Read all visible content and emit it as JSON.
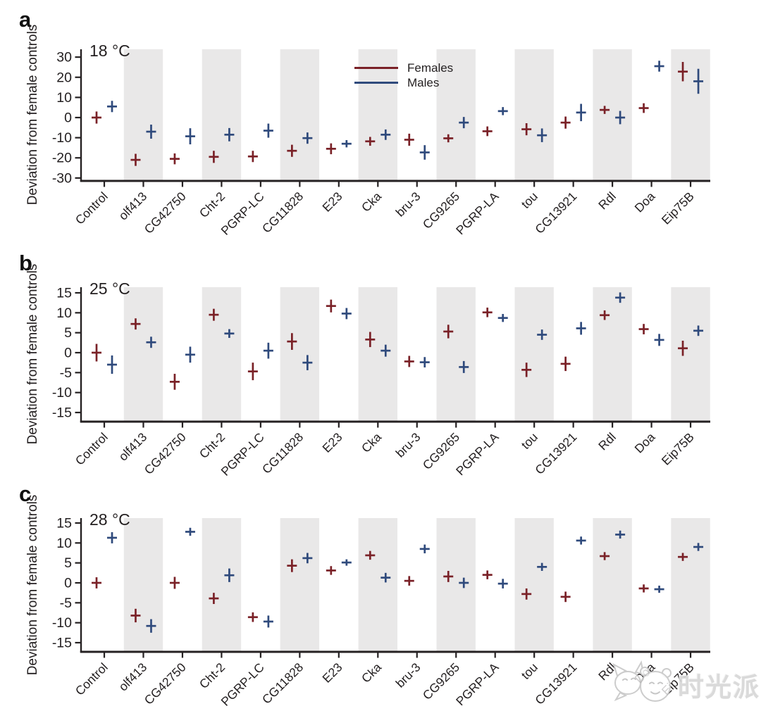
{
  "figure": {
    "panels": [
      {
        "letter": "a",
        "temperature": "18 °C",
        "ylabel": "Deviation from female controls"
      },
      {
        "letter": "b",
        "temperature": "25 °C",
        "ylabel": "Deviation from female controls"
      },
      {
        "letter": "c",
        "temperature": "28 °C",
        "ylabel": "Deviation from female controls"
      }
    ],
    "legend": {
      "females": "Females",
      "males": "Males"
    },
    "watermark": {
      "text": "时光派"
    },
    "colors": {
      "females": "#7a2127",
      "males": "#2f4a7c",
      "shaded_band": "#e9e8e8",
      "axis": "#252122"
    }
  },
  "chart_data": [
    {
      "type": "scatter",
      "panel": "a",
      "title": "18 °C",
      "xlabel": "",
      "ylabel": "Deviation from female controls",
      "ylim": [
        -32,
        32
      ],
      "yticks": [
        30,
        20,
        10,
        0,
        -10,
        -20,
        -30
      ],
      "grid": false,
      "legend_position": "top-center-inside",
      "legend_entries": [
        "Females",
        "Males"
      ],
      "shaded_band_indices": [
        1,
        3,
        5,
        7,
        9,
        11,
        13,
        15
      ],
      "categories": [
        "Control",
        "olf413",
        "CG42750",
        "Cht-2",
        "PGRP-LC",
        "CG11828",
        "E23",
        "Cka",
        "bru-3",
        "CG9265",
        "PGRP-LA",
        "tou",
        "CG13921",
        "Rdl",
        "Doa",
        "Eip75B"
      ],
      "series": [
        {
          "name": "Females",
          "color": "#7a2127",
          "values": [
            0,
            -21,
            -20.5,
            -19.5,
            -19.3,
            -16.5,
            -15.5,
            -11.8,
            -11,
            -10.3,
            -6.8,
            -5.8,
            -2.5,
            3.8,
            4.7,
            22.8
          ],
          "errors": [
            3,
            3,
            2.7,
            3,
            2.8,
            3,
            2.7,
            2.2,
            3,
            2,
            2.4,
            3,
            3,
            2,
            2.4,
            4.8
          ]
        },
        {
          "name": "Males",
          "color": "#2f4a7c",
          "values": [
            5.5,
            -7,
            -9.3,
            -8.5,
            -6.5,
            -10.2,
            -13,
            -8.5,
            -17.3,
            -2.5,
            3.2,
            -8.8,
            2.5,
            0,
            25.5,
            18
          ],
          "errors": [
            2.8,
            3.5,
            4,
            3.3,
            3.5,
            2.8,
            1.8,
            2.6,
            3.6,
            2.8,
            2,
            3.4,
            4.3,
            3.3,
            2.7,
            6.2
          ]
        }
      ]
    },
    {
      "type": "scatter",
      "panel": "b",
      "title": "25 °C",
      "xlabel": "",
      "ylabel": "Deviation from female controls",
      "ylim": [
        -16,
        16
      ],
      "yticks": [
        15,
        10,
        5,
        0,
        -5,
        -10,
        -15
      ],
      "grid": false,
      "shaded_band_indices": [
        1,
        3,
        5,
        7,
        9,
        11,
        13,
        15
      ],
      "categories": [
        "Control",
        "olf413",
        "CG42750",
        "Cht-2",
        "PGRP-LC",
        "CG11828",
        "E23",
        "Cka",
        "bru-3",
        "CG9265",
        "PGRP-LA",
        "tou",
        "CG13921",
        "Rdl",
        "Doa",
        "Eip75B"
      ],
      "series": [
        {
          "name": "Females",
          "color": "#7a2127",
          "values": [
            0,
            7.2,
            -7.3,
            9.5,
            -4.7,
            2.8,
            11.7,
            3.3,
            -2.2,
            5.3,
            10.1,
            -4.3,
            -2.8,
            9.4,
            5.9,
            1.1
          ],
          "errors": [
            2.2,
            1.4,
            2,
            1.5,
            2.2,
            2.1,
            1.6,
            1.9,
            1.4,
            1.7,
            1.2,
            1.8,
            1.8,
            1.2,
            1.3,
            1.9
          ]
        },
        {
          "name": "Males",
          "color": "#2f4a7c",
          "values": [
            -3,
            2.6,
            -0.5,
            4.8,
            0.5,
            -2.5,
            9.8,
            0.5,
            -2.4,
            -3.6,
            8.7,
            4.5,
            6.1,
            13.8,
            3.2,
            5.5
          ],
          "errors": [
            2.3,
            1.4,
            2,
            1.1,
            2,
            1.9,
            1.4,
            1.5,
            1.3,
            1.5,
            1,
            1.3,
            1.6,
            1.3,
            1.5,
            1.3
          ]
        }
      ]
    },
    {
      "type": "scatter",
      "panel": "c",
      "title": "28 °C",
      "xlabel": "",
      "ylabel": "Deviation from female controls",
      "ylim": [
        -16,
        16
      ],
      "yticks": [
        15,
        10,
        5,
        0,
        -5,
        -10,
        -15
      ],
      "grid": false,
      "shaded_band_indices": [
        1,
        3,
        5,
        7,
        9,
        11,
        13,
        15
      ],
      "categories": [
        "Control",
        "olf413",
        "CG42750",
        "Cht-2",
        "PGRP-LC",
        "CG11828",
        "E23",
        "Cka",
        "bru-3",
        "CG9265",
        "PGRP-LA",
        "tou",
        "CG13921",
        "Rdl",
        "Doa",
        "Eip75B"
      ],
      "series": [
        {
          "name": "Females",
          "color": "#7a2127",
          "values": [
            0,
            -8.2,
            0,
            -3.9,
            -8.6,
            4.3,
            3.1,
            6.9,
            0.5,
            1.6,
            2.0,
            -2.8,
            -3.5,
            6.7,
            -1.4,
            6.5
          ],
          "errors": [
            1.4,
            1.7,
            1.5,
            1.4,
            1.2,
            1.6,
            1.1,
            1.1,
            1.2,
            1.4,
            1.1,
            1.4,
            1.3,
            1,
            1,
            1
          ]
        },
        {
          "name": "Males",
          "color": "#2f4a7c",
          "values": [
            11.3,
            -10.8,
            12.8,
            1.9,
            -9.7,
            6.2,
            5.1,
            1.3,
            8.5,
            0.0,
            -0.2,
            4.0,
            10.6,
            12.1,
            -1.6,
            9.0
          ],
          "errors": [
            1.4,
            1.7,
            1,
            1.7,
            1.5,
            1.3,
            0.8,
            1.2,
            1.1,
            1.3,
            1.2,
            1,
            1,
            1,
            0.9,
            1
          ]
        }
      ]
    }
  ]
}
